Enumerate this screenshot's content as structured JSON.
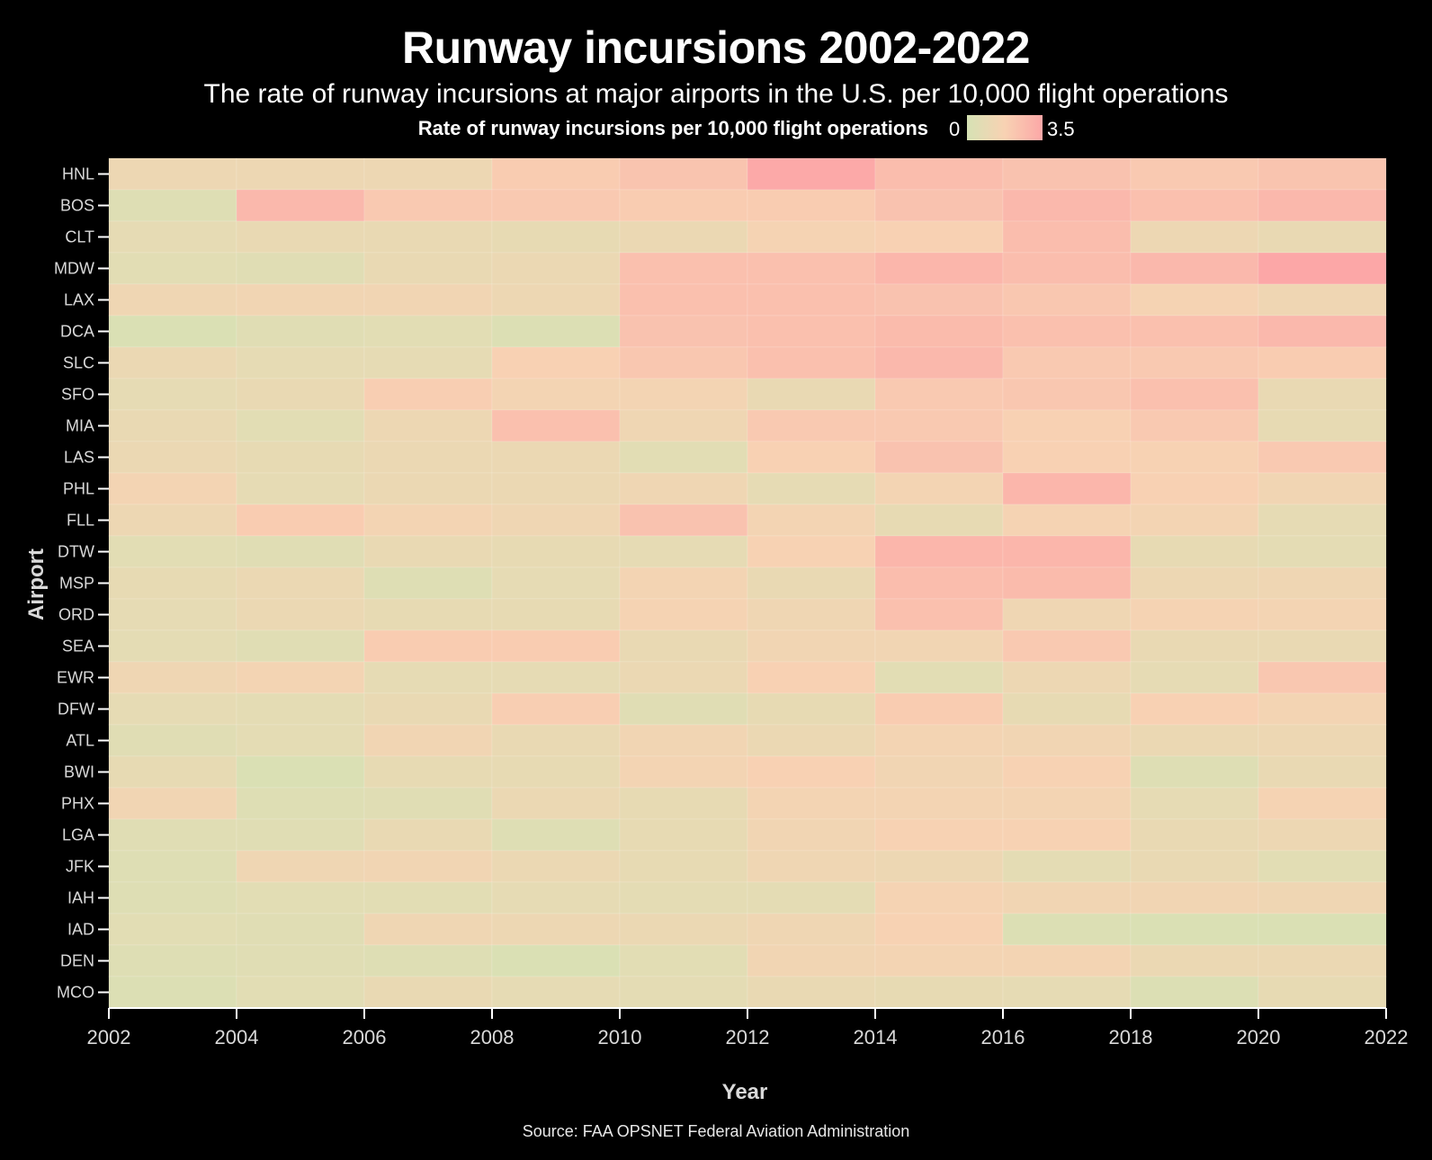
{
  "title": "Runway incursions 2002-2022",
  "subtitle": "The rate of runway incursions at major airports in the U.S. per 10,000 flight operations",
  "legend": {
    "title": "Rate of runway incursions per 10,000 flight operations",
    "min_label": "0",
    "max_label": "3.5"
  },
  "source": "Source: FAA OPSNET Federal Aviation Administration",
  "colors": {
    "background": "#000000",
    "low": "#d6e2b4",
    "mid": "#f8d2b3",
    "high": "#fca7a7"
  },
  "chart_data": {
    "type": "heatmap",
    "title": "Runway incursions 2002-2022",
    "xlabel": "Year",
    "ylabel": "Airport",
    "x_ticks": [
      "2002",
      "2004",
      "2006",
      "2008",
      "2010",
      "2012",
      "2014",
      "2016",
      "2018",
      "2020",
      "2022"
    ],
    "xlim": [
      2002,
      2022
    ],
    "bin_starts": [
      2002,
      2004,
      2006,
      2008,
      2010,
      2012,
      2014,
      2016,
      2018,
      2020
    ],
    "bin_width_years": 2,
    "color_range": [
      0,
      3.5
    ],
    "airports": [
      "HNL",
      "BOS",
      "CLT",
      "MDW",
      "LAX",
      "DCA",
      "SLC",
      "SFO",
      "MIA",
      "LAS",
      "PHL",
      "FLL",
      "DTW",
      "MSP",
      "ORD",
      "SEA",
      "EWR",
      "DFW",
      "ATL",
      "BWI",
      "PHX",
      "LGA",
      "JFK",
      "IAH",
      "IAD",
      "DEN",
      "MCO"
    ],
    "values": [
      [
        1.2,
        1.2,
        1.2,
        2.0,
        2.3,
        3.4,
        2.6,
        2.4,
        2.1,
        2.3
      ],
      [
        0.4,
        2.8,
        2.1,
        2.1,
        2.0,
        2.0,
        2.4,
        2.8,
        2.5,
        2.8
      ],
      [
        0.8,
        1.0,
        1.0,
        0.9,
        1.1,
        1.6,
        1.8,
        2.6,
        1.2,
        1.0
      ],
      [
        0.6,
        0.5,
        1.0,
        1.1,
        2.5,
        2.5,
        2.9,
        2.6,
        2.8,
        3.5
      ],
      [
        1.3,
        1.4,
        1.4,
        1.2,
        2.5,
        2.5,
        2.4,
        2.2,
        1.6,
        1.3
      ],
      [
        0.2,
        0.5,
        0.6,
        0.3,
        2.4,
        2.5,
        2.7,
        2.5,
        2.5,
        2.8
      ],
      [
        1.1,
        0.8,
        0.8,
        1.8,
        2.2,
        2.5,
        2.8,
        2.1,
        2.1,
        2.0
      ],
      [
        0.8,
        1.0,
        1.9,
        1.5,
        1.5,
        1.0,
        2.1,
        2.2,
        2.5,
        1.0
      ],
      [
        1.0,
        0.6,
        1.2,
        2.5,
        1.3,
        2.1,
        2.1,
        1.8,
        2.1,
        0.9
      ],
      [
        1.1,
        0.9,
        1.1,
        1.1,
        0.6,
        1.8,
        2.4,
        1.8,
        1.7,
        2.1
      ],
      [
        1.5,
        0.8,
        1.1,
        1.1,
        1.3,
        0.8,
        1.5,
        2.9,
        1.8,
        1.4
      ],
      [
        1.2,
        2.0,
        1.5,
        1.3,
        2.4,
        1.5,
        0.9,
        1.6,
        1.5,
        0.8
      ],
      [
        0.6,
        0.5,
        1.0,
        0.9,
        0.8,
        1.7,
        2.9,
        2.9,
        0.9,
        0.7
      ],
      [
        0.9,
        1.1,
        0.4,
        0.8,
        1.5,
        1.0,
        2.6,
        2.7,
        1.2,
        1.3
      ],
      [
        0.8,
        1.1,
        0.9,
        0.9,
        1.6,
        1.3,
        2.5,
        1.3,
        1.6,
        1.5
      ],
      [
        0.7,
        0.5,
        2.0,
        2.0,
        1.0,
        1.4,
        1.4,
        2.1,
        1.0,
        1.0
      ],
      [
        1.3,
        1.5,
        0.8,
        0.8,
        1.1,
        1.8,
        0.6,
        1.2,
        0.8,
        2.2
      ],
      [
        0.8,
        0.7,
        1.0,
        1.9,
        0.5,
        0.9,
        2.0,
        0.9,
        1.8,
        1.5
      ],
      [
        0.5,
        0.7,
        1.4,
        1.0,
        1.4,
        1.1,
        1.5,
        1.4,
        1.1,
        1.2
      ],
      [
        0.9,
        0.2,
        0.9,
        0.9,
        1.5,
        1.8,
        1.4,
        1.7,
        0.4,
        1.0
      ],
      [
        1.4,
        0.4,
        0.5,
        1.1,
        0.9,
        1.5,
        1.5,
        1.5,
        0.8,
        1.6
      ],
      [
        0.5,
        0.5,
        1.0,
        0.4,
        0.9,
        1.4,
        1.7,
        1.7,
        1.0,
        1.2
      ],
      [
        0.4,
        1.3,
        1.4,
        1.1,
        0.9,
        1.3,
        1.2,
        0.7,
        1.0,
        0.6
      ],
      [
        0.4,
        0.6,
        0.6,
        0.8,
        0.7,
        0.7,
        1.6,
        1.4,
        1.4,
        1.3
      ],
      [
        0.6,
        0.5,
        1.3,
        1.2,
        1.1,
        1.3,
        1.7,
        0.3,
        0.2,
        0.2
      ],
      [
        0.4,
        0.5,
        0.4,
        0.2,
        0.6,
        1.4,
        1.5,
        1.5,
        1.1,
        1.1
      ],
      [
        0.3,
        0.6,
        1.0,
        0.8,
        0.7,
        1.0,
        0.9,
        0.8,
        0.3,
        0.9
      ]
    ]
  }
}
